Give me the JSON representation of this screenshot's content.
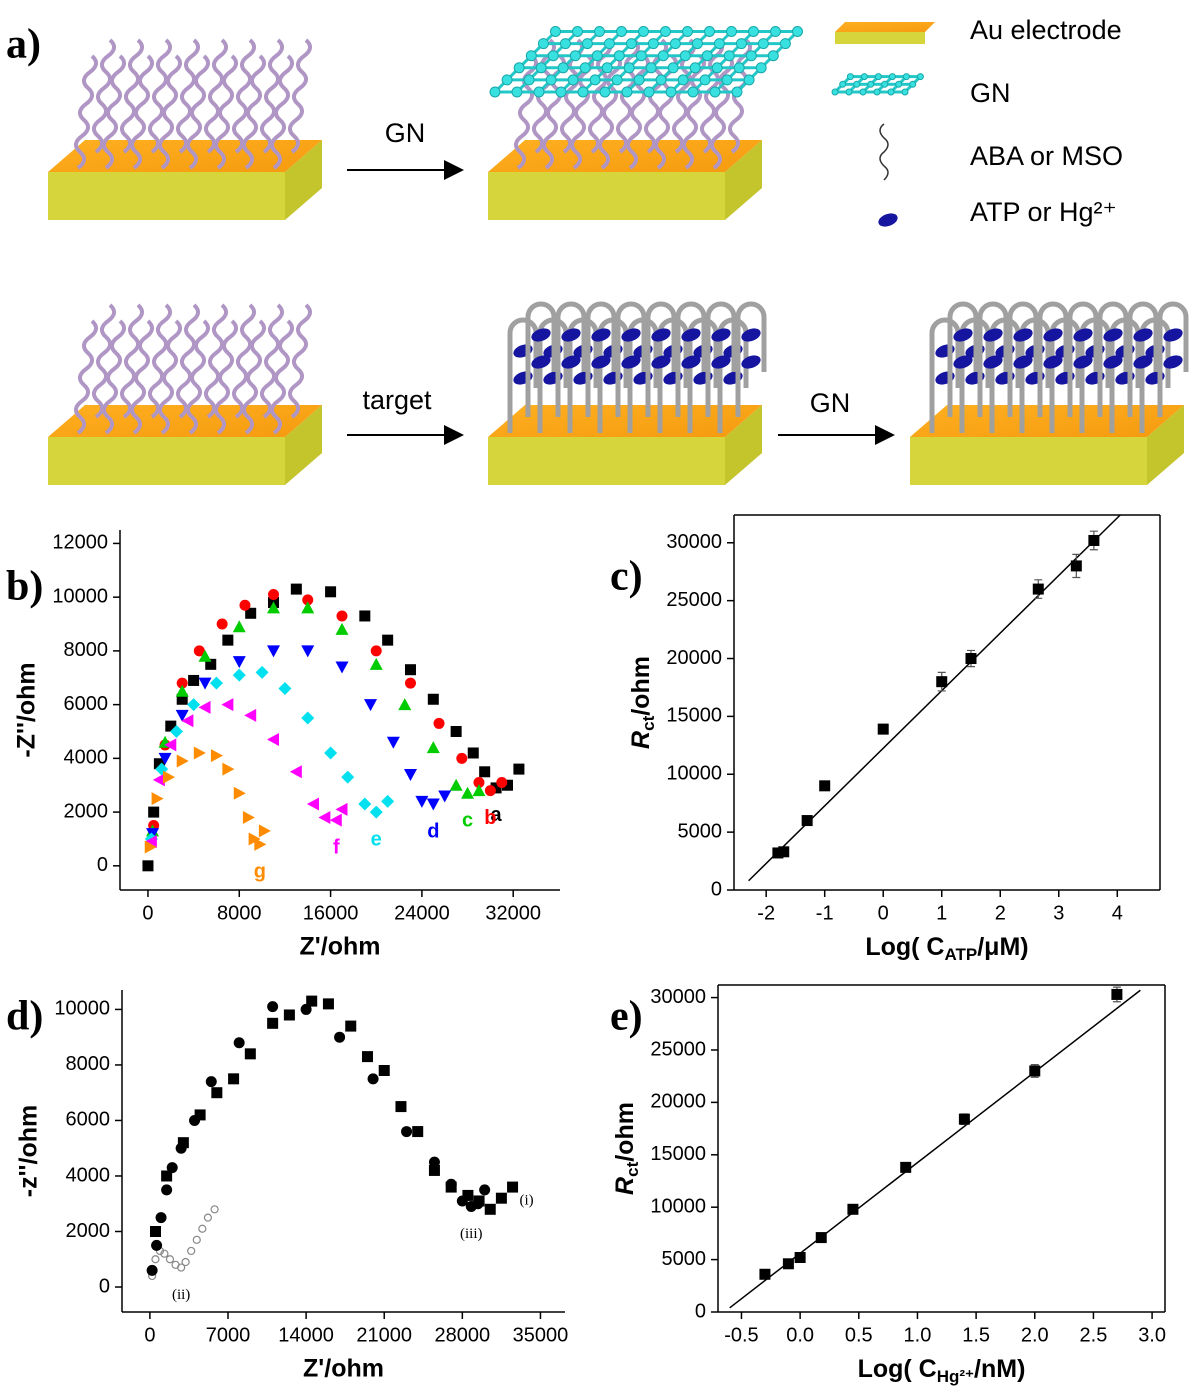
{
  "panels": [
    "a)",
    "b)",
    "c)",
    "d)",
    "e)"
  ],
  "schematic": {
    "arrows": [
      "GN",
      "target",
      "GN"
    ],
    "legend": [
      "Au electrode",
      "GN",
      "ABA or MSO",
      "ATP or Hg²⁺"
    ]
  },
  "chart_data": [
    {
      "type": "scatter",
      "x_label": "Z'/ohm",
      "y_label": "-Z''/ohm",
      "xlim": [
        -2450,
        36100
      ],
      "ylim": [
        -900,
        12500
      ],
      "xticks": [
        0,
        8000,
        16000,
        24000,
        32000
      ],
      "yticks": [
        0,
        2000,
        4000,
        6000,
        8000,
        10000,
        12000
      ],
      "series": [
        {
          "name": "a",
          "color": "#000000",
          "marker": "square",
          "x": [
            0,
            500,
            1000,
            2000,
            3000,
            4000,
            5500,
            7000,
            9000,
            11000,
            13000,
            16000,
            19000,
            21000,
            23000,
            25000,
            27000,
            28500,
            29500,
            30500,
            31500,
            32500
          ],
          "values": [
            0,
            2000,
            3800,
            5200,
            6200,
            6900,
            7500,
            8400,
            9400,
            9800,
            10300,
            10200,
            9300,
            8400,
            7300,
            6200,
            5000,
            4200,
            3500,
            2900,
            3000,
            3600
          ]
        },
        {
          "name": "b",
          "color": "#ff0000",
          "marker": "circle",
          "x": [
            500,
            1500,
            3000,
            4500,
            6500,
            8500,
            11000,
            14000,
            17000,
            20000,
            23000,
            25500,
            27500,
            29000,
            30000,
            31000
          ],
          "values": [
            1500,
            4500,
            6800,
            8000,
            9000,
            9700,
            10100,
            9900,
            9300,
            8000,
            6800,
            5300,
            4000,
            3100,
            2800,
            3100
          ]
        },
        {
          "name": "c",
          "color": "#00cc00",
          "marker": "triangle-up",
          "x": [
            400,
            1500,
            3000,
            5000,
            8000,
            11000,
            14000,
            17000,
            20000,
            22500,
            25000,
            27000,
            28000,
            29000
          ],
          "values": [
            1300,
            4600,
            6500,
            7800,
            8900,
            9600,
            9600,
            8800,
            7500,
            6000,
            4400,
            3000,
            2700,
            2800
          ]
        },
        {
          "name": "d",
          "color": "#0000ff",
          "marker": "triangle-down",
          "x": [
            400,
            1500,
            3000,
            5000,
            8000,
            11000,
            14000,
            17000,
            19500,
            21500,
            23000,
            24000,
            25000,
            26000
          ],
          "values": [
            1200,
            4000,
            5600,
            6800,
            7600,
            8000,
            8000,
            7400,
            6000,
            4600,
            3400,
            2400,
            2300,
            2600
          ]
        },
        {
          "name": "e",
          "color": "#00e0ee",
          "marker": "diamond",
          "x": [
            300,
            1200,
            2500,
            4000,
            6000,
            8000,
            10000,
            12000,
            14000,
            16000,
            17500,
            19000,
            20000,
            21000
          ],
          "values": [
            1000,
            3600,
            5000,
            6000,
            6800,
            7100,
            7200,
            6600,
            5500,
            4200,
            3300,
            2300,
            2000,
            2400
          ]
        },
        {
          "name": "f",
          "color": "#ff00ff",
          "marker": "triangle-left",
          "x": [
            300,
            1000,
            2000,
            3500,
            5000,
            7000,
            9000,
            11000,
            13000,
            14500,
            15500,
            16500,
            17000
          ],
          "values": [
            900,
            3200,
            4500,
            5400,
            5900,
            6000,
            5600,
            4700,
            3500,
            2300,
            1800,
            1700,
            2100
          ]
        },
        {
          "name": "g",
          "color": "#ff8c00",
          "marker": "triangle-right",
          "x": [
            200,
            800,
            1800,
            3000,
            4500,
            6000,
            7000,
            8000,
            8800,
            9300,
            9800,
            10200
          ],
          "values": [
            700,
            2500,
            3300,
            3900,
            4200,
            4100,
            3600,
            2700,
            1800,
            1000,
            800,
            1300
          ]
        }
      ]
    },
    {
      "type": "scatter",
      "x_label": {
        "text": "Log( C",
        "sub": "ATP",
        "end": "/μM)"
      },
      "y_label": {
        "text": "R",
        "sub": "ct",
        "end": "/ohm"
      },
      "xlim": [
        -2.55,
        4.73
      ],
      "ylim": [
        0,
        32400
      ],
      "xticks": [
        -2,
        -1,
        0,
        1,
        2,
        3,
        4
      ],
      "yticks": [
        0,
        5000,
        10000,
        15000,
        20000,
        25000,
        30000
      ],
      "series": [
        {
          "color": "#000000",
          "marker": "square",
          "x": [
            -1.8,
            -1.7,
            -1.3,
            -1,
            0,
            1,
            1.5,
            2.65,
            3.3,
            3.6
          ],
          "values": [
            3200,
            3300,
            6000,
            9000,
            13900,
            18000,
            20000,
            26000,
            28000,
            30200
          ],
          "errors": [
            200,
            200,
            200,
            300,
            400,
            800,
            700,
            800,
            1000,
            800
          ]
        }
      ],
      "fit": {
        "x": [
          -2.3,
          4.05
        ],
        "y": [
          800,
          32400
        ]
      }
    },
    {
      "type": "scatter",
      "x_label": "Z'/ohm",
      "y_label": "-z''/ohm",
      "xlim": [
        -2500,
        37200
      ],
      "ylim": [
        -900,
        10700
      ],
      "xticks": [
        0,
        7000,
        14000,
        21000,
        28000,
        35000
      ],
      "yticks": [
        0,
        2000,
        4000,
        6000,
        8000,
        10000
      ],
      "series": [
        {
          "name": "(i)",
          "color": "#000000",
          "marker": "square",
          "x": [
            500,
            1500,
            3000,
            4500,
            6000,
            7500,
            9000,
            11000,
            12500,
            14500,
            16000,
            18000,
            19500,
            21000,
            22500,
            24000,
            25500,
            27000,
            28500,
            29500,
            30500,
            31500,
            32500
          ],
          "values": [
            2000,
            4000,
            5200,
            6200,
            7000,
            7500,
            8400,
            9500,
            9800,
            10300,
            10200,
            9400,
            8300,
            7800,
            6500,
            5600,
            4200,
            3600,
            3300,
            3100,
            2800,
            3200,
            3600
          ]
        },
        {
          "name": "(ii)",
          "color": "#888888",
          "marker": "open-circle",
          "x": [
            200,
            500,
            900,
            1300,
            1800,
            2300,
            2800,
            3200,
            3700,
            4200,
            4700,
            5200,
            5800
          ],
          "values": [
            400,
            1000,
            1300,
            1200,
            1000,
            800,
            700,
            900,
            1300,
            1700,
            2100,
            2500,
            2800
          ]
        },
        {
          "name": "(iii)",
          "color": "#000000",
          "marker": "circle",
          "x": [
            200,
            600,
            1000,
            1500,
            2000,
            2800,
            4000,
            5500,
            8000,
            11000,
            14000,
            17000,
            20000,
            23000,
            25500,
            27000,
            28000,
            28800,
            29400,
            30000
          ],
          "values": [
            600,
            1500,
            2500,
            3500,
            4300,
            5000,
            6000,
            7400,
            8800,
            10100,
            10000,
            9000,
            7500,
            5600,
            4500,
            3700,
            3100,
            2900,
            3000,
            3500
          ]
        }
      ]
    },
    {
      "type": "scatter",
      "x_label": {
        "text": "Log( C",
        "sub": "Hg²⁺",
        "end": "/nM)"
      },
      "y_label": {
        "text": "R",
        "sub": "ct",
        "end": "/ohm"
      },
      "xlim": [
        -0.7,
        3.11
      ],
      "ylim": [
        0,
        31200
      ],
      "xticks": [
        -0.5,
        {
          "value": 0,
          "label": "0.0"
        },
        0.5,
        {
          "value": 1,
          "label": "1.0"
        },
        1.5,
        {
          "value": 2,
          "label": "2.0"
        },
        2.5,
        {
          "value": 3,
          "label": "3.0"
        }
      ],
      "yticks": [
        0,
        5000,
        10000,
        15000,
        20000,
        25000,
        30000
      ],
      "series": [
        {
          "color": "#000000",
          "marker": "square",
          "x": [
            -0.3,
            -0.1,
            0,
            0.18,
            0.45,
            0.9,
            1.4,
            2.0,
            2.7
          ],
          "values": [
            3600,
            4600,
            5200,
            7100,
            9800,
            13800,
            18400,
            23000,
            30300
          ],
          "errors": [
            200,
            200,
            250,
            200,
            200,
            400,
            500,
            600,
            700
          ]
        }
      ],
      "fit": {
        "x": [
          -0.6,
          2.9
        ],
        "y": [
          400,
          30700
        ]
      }
    }
  ]
}
